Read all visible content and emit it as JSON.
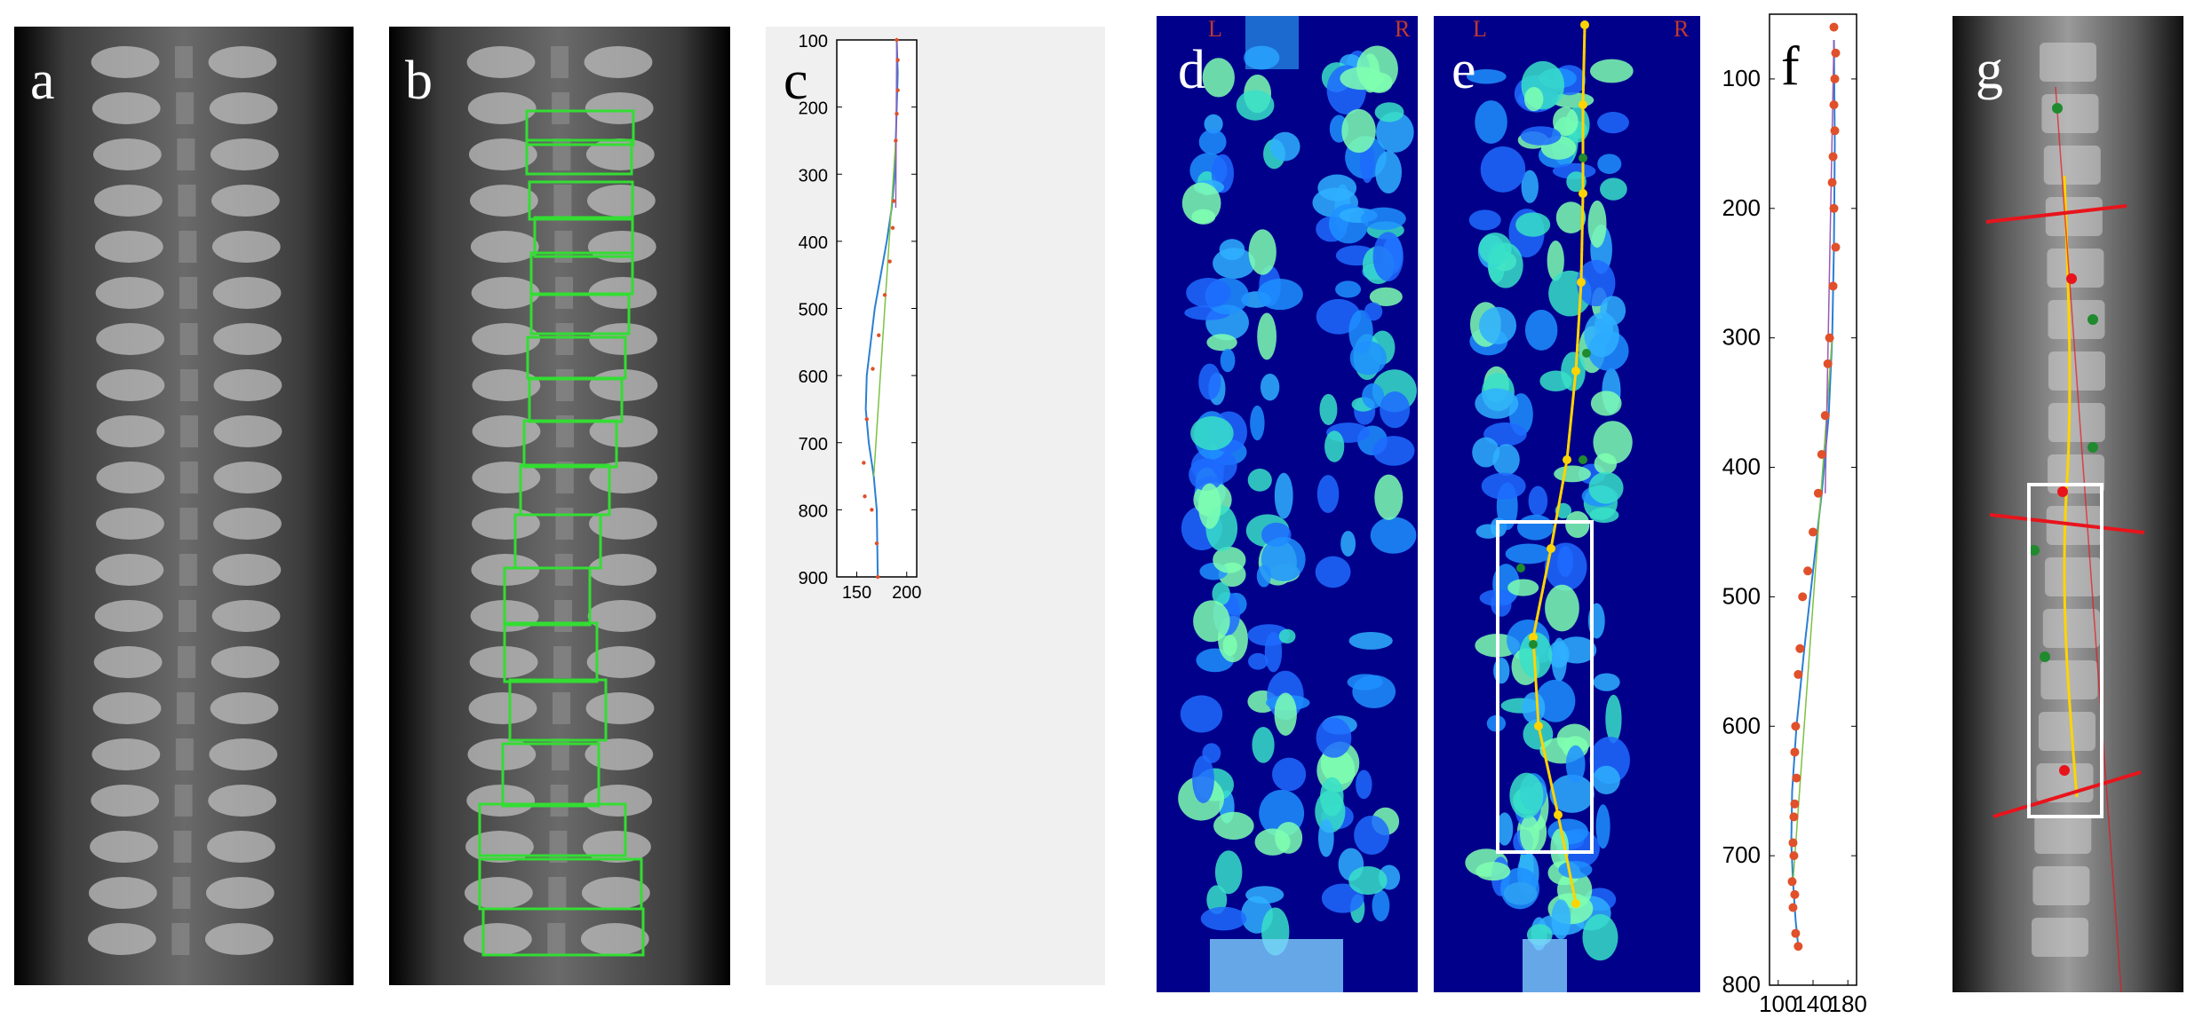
{
  "panels": {
    "a": {
      "label": "a"
    },
    "b": {
      "label": "b"
    },
    "c": {
      "label": "c"
    },
    "d": {
      "label": "d",
      "left_marker": "L",
      "right_marker": "R"
    },
    "e": {
      "label": "e",
      "left_marker": "L",
      "right_marker": "R"
    },
    "f": {
      "label": "f"
    },
    "g": {
      "label": "g"
    }
  },
  "colors": {
    "box_green": "#33dd33",
    "spline_yellow": "#ffd400",
    "point_red": "#e0502a",
    "point_green": "#1f8a2e",
    "line_blue": "#2a7fd4",
    "line_green": "#7cc242",
    "line_purple": "#9b59b6",
    "tilt_red": "#e8141c",
    "roi_white": "#ffffff"
  },
  "chart_data": [
    {
      "panel": "c",
      "type": "line",
      "ylim": [
        900,
        100
      ],
      "xlim": [
        130,
        210
      ],
      "y_ticks": [
        100,
        200,
        300,
        400,
        500,
        600,
        700,
        800,
        900
      ],
      "x_ticks": [
        150,
        200
      ],
      "series": [
        {
          "x": [
            190,
            191,
            190,
            189,
            188,
            185,
            180,
            174,
            168,
            164,
            160,
            159,
            162,
            167,
            170,
            171
          ],
          "y": [
            100,
            150,
            200,
            250,
            300,
            350,
            400,
            450,
            500,
            550,
            600,
            650,
            700,
            750,
            800,
            900
          ]
        }
      ],
      "points": {
        "x": [
          190,
          191,
          191,
          190,
          189,
          187,
          186,
          183,
          178,
          172,
          166,
          160,
          157,
          158,
          165,
          170,
          171
        ],
        "y": [
          100,
          130,
          175,
          210,
          250,
          340,
          380,
          430,
          480,
          540,
          590,
          665,
          730,
          780,
          800,
          850,
          900
        ]
      }
    },
    {
      "panel": "f",
      "type": "line",
      "ylim": [
        800,
        50
      ],
      "xlim": [
        90,
        190
      ],
      "y_ticks": [
        100,
        200,
        300,
        400,
        500,
        600,
        700,
        800
      ],
      "x_ticks": [
        100,
        140,
        180
      ],
      "series": [
        {
          "x": [
            164,
            165,
            164,
            162,
            158,
            150,
            140,
            130,
            121,
            116,
            115,
            117,
            120,
            123
          ],
          "y": [
            70,
            150,
            230,
            300,
            360,
            420,
            480,
            540,
            600,
            650,
            690,
            720,
            750,
            770
          ]
        }
      ],
      "points": {
        "x": [
          164,
          166,
          165,
          164,
          165,
          163,
          162,
          164,
          166,
          163,
          159,
          157,
          154,
          150,
          146,
          140,
          134,
          128,
          125,
          123,
          120,
          119,
          121,
          119,
          118,
          117,
          118,
          116,
          119,
          117,
          120,
          123
        ],
        "y": [
          60,
          80,
          100,
          120,
          140,
          160,
          180,
          200,
          230,
          260,
          300,
          320,
          360,
          390,
          420,
          450,
          480,
          500,
          540,
          560,
          600,
          620,
          640,
          660,
          670,
          690,
          700,
          720,
          730,
          740,
          760,
          770
        ]
      }
    }
  ]
}
